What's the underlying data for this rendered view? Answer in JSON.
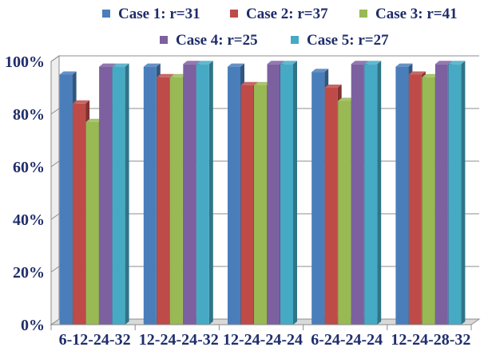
{
  "chart_data": {
    "type": "bar",
    "categories": [
      "6-12-24-32",
      "12-24-24-32",
      "12-24-24-24",
      "6-24-24-24",
      "12-24-28-32"
    ],
    "series": [
      {
        "name": "Case 1: r=31",
        "color": "#4a7ebb",
        "values": [
          95,
          98,
          98,
          96,
          98
        ]
      },
      {
        "name": "Case 2: r=37",
        "color": "#be4b48",
        "values": [
          84,
          94,
          91,
          90,
          95
        ]
      },
      {
        "name": "Case 3: r=41",
        "color": "#98b954",
        "values": [
          77,
          94,
          91,
          85,
          94
        ]
      },
      {
        "name": "Case 4: r=25",
        "color": "#7d60a0",
        "values": [
          98,
          99,
          99,
          99,
          99
        ]
      },
      {
        "name": "Case 5: r=27",
        "color": "#46aac5",
        "values": [
          98,
          99,
          99,
          99,
          99
        ]
      }
    ],
    "yticks": [
      "0%",
      "20%",
      "40%",
      "60%",
      "80%",
      "100%"
    ],
    "ylim": [
      0,
      100
    ],
    "grid": true,
    "legend_position": "top",
    "title": "",
    "xlabel": "",
    "ylabel": ""
  }
}
